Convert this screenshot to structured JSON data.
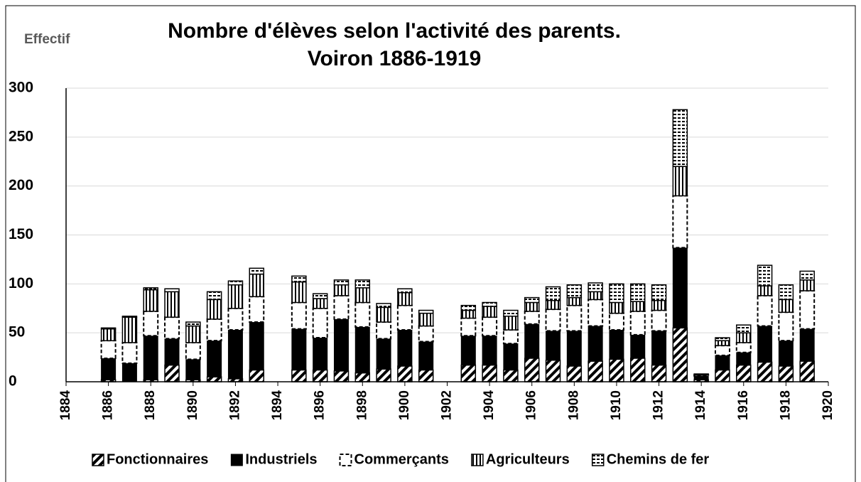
{
  "chart_data": {
    "type": "bar",
    "stacked": true,
    "title": "Nombre d'élèves selon l'activité des parents.",
    "subtitle": "Voiron 1886-1919",
    "y_label": "Effectif",
    "x": [
      1886,
      1887,
      1888,
      1889,
      1890,
      1891,
      1892,
      1893,
      1895,
      1896,
      1897,
      1898,
      1899,
      1900,
      1901,
      1903,
      1904,
      1905,
      1906,
      1907,
      1908,
      1909,
      1910,
      1911,
      1912,
      1913,
      1914,
      1915,
      1916,
      1917,
      1918,
      1919
    ],
    "series": [
      {
        "name": "Fonctionnaires",
        "color": "#000000",
        "pattern": "diagonal",
        "values": [
          2,
          0,
          2,
          17,
          2,
          5,
          3,
          12,
          12,
          12,
          11,
          9,
          13,
          16,
          12,
          17,
          17,
          12,
          24,
          22,
          16,
          21,
          23,
          24,
          17,
          55,
          2,
          12,
          17,
          20,
          16,
          21
        ]
      },
      {
        "name": "Industriels",
        "color": "#000000",
        "pattern": "solid",
        "values": [
          22,
          19,
          45,
          27,
          21,
          37,
          50,
          49,
          42,
          33,
          53,
          47,
          31,
          37,
          29,
          30,
          30,
          27,
          35,
          30,
          36,
          36,
          30,
          24,
          35,
          82,
          4,
          15,
          13,
          37,
          26,
          33
        ]
      },
      {
        "name": "Commerçants",
        "color": "#000000",
        "pattern": "dashed",
        "values": [
          18,
          21,
          25,
          22,
          17,
          22,
          22,
          26,
          27,
          30,
          24,
          25,
          17,
          25,
          16,
          18,
          19,
          14,
          13,
          22,
          26,
          27,
          17,
          24,
          21,
          53,
          1,
          10,
          10,
          31,
          29,
          39
        ]
      },
      {
        "name": "Agriculteurs",
        "color": "#000000",
        "pattern": "vertical",
        "values": [
          12,
          26,
          22,
          26,
          17,
          20,
          24,
          23,
          21,
          10,
          11,
          15,
          15,
          13,
          13,
          8,
          11,
          14,
          9,
          9,
          8,
          8,
          11,
          10,
          10,
          30,
          0,
          5,
          10,
          10,
          13,
          11
        ]
      },
      {
        "name": "Chemins de fer",
        "color": "#000000",
        "pattern": "horizontal",
        "values": [
          1,
          1,
          2,
          3,
          4,
          8,
          4,
          6,
          6,
          5,
          5,
          8,
          4,
          4,
          3,
          5,
          4,
          6,
          5,
          14,
          13,
          9,
          19,
          18,
          16,
          58,
          1,
          3,
          8,
          21,
          15,
          9
        ]
      }
    ],
    "xlim": [
      1884,
      1920
    ],
    "xticks": [
      1884,
      1886,
      1888,
      1890,
      1892,
      1894,
      1896,
      1898,
      1900,
      1902,
      1904,
      1906,
      1908,
      1910,
      1912,
      1914,
      1916,
      1918,
      1920
    ],
    "ylim": [
      0,
      300
    ],
    "yticks": [
      0,
      50,
      100,
      150,
      200,
      250,
      300
    ],
    "grid": true,
    "legend": "bottom"
  }
}
